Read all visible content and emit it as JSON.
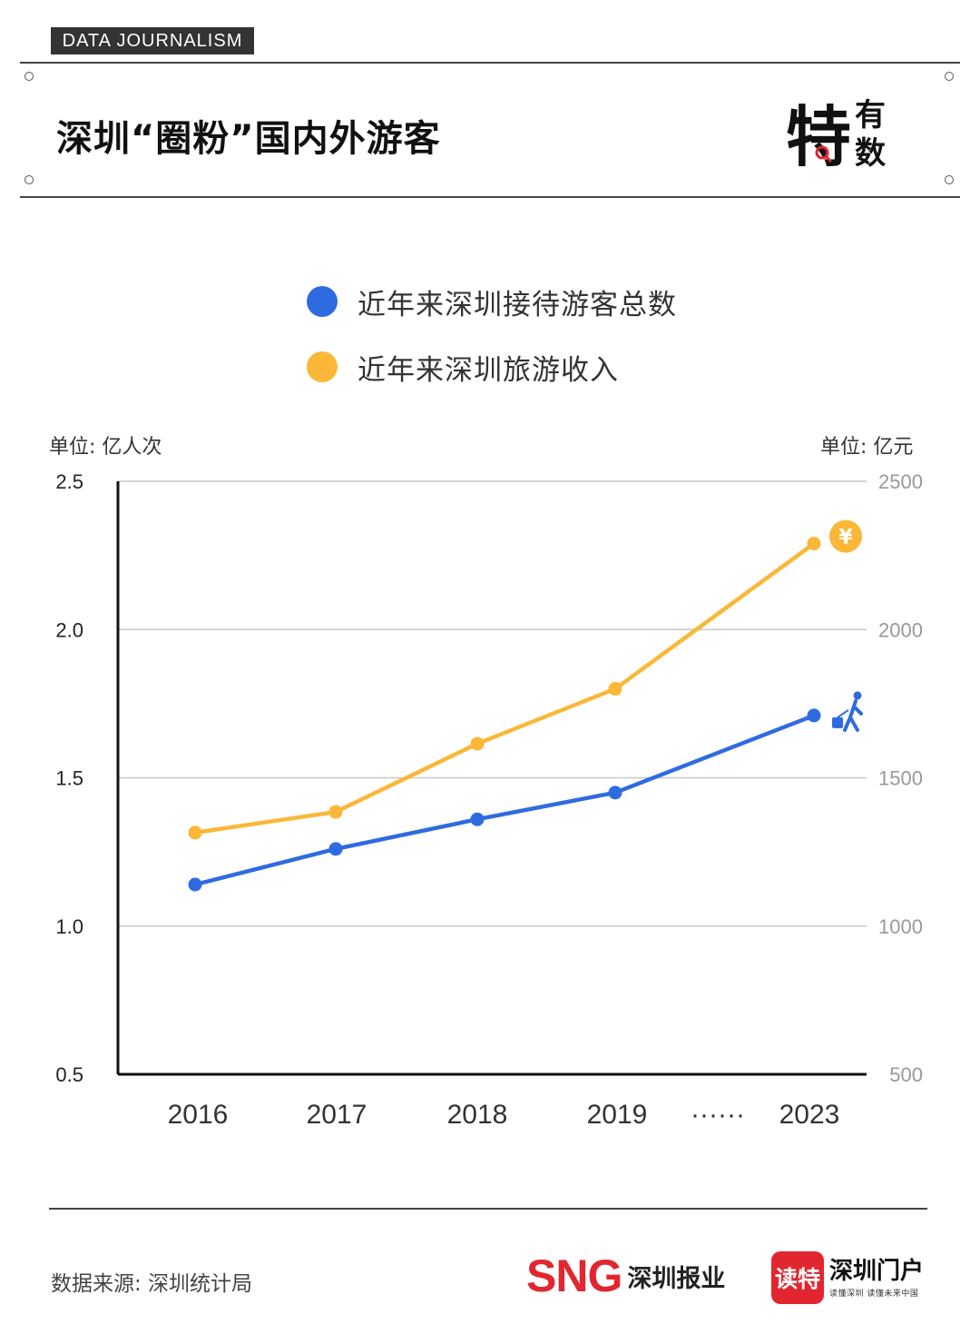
{
  "header": {
    "tag": "DATA JOURNALISM",
    "title": "深圳“圈粉”国内外游客",
    "logo_big": "特",
    "logo_top": "有",
    "logo_bottom": "数"
  },
  "legend": [
    {
      "label": "近年来深圳接待游客总数",
      "color": "#2f6be0"
    },
    {
      "label": "近年来深圳旅游收入",
      "color": "#fbb737"
    }
  ],
  "axes": {
    "left_unit": "单位: 亿人次",
    "right_unit": "单位: 亿元",
    "left_ticks": [
      "0.5",
      "1.0",
      "1.5",
      "2.0",
      "2.5"
    ],
    "right_ticks": [
      "500",
      "1000",
      "1500",
      "2000",
      "2500"
    ],
    "x_labels": [
      "2016",
      "2017",
      "2018",
      "2019",
      "······",
      "2023"
    ]
  },
  "chart_data": {
    "type": "line",
    "x": [
      "2016",
      "2017",
      "2018",
      "2019",
      "2023"
    ],
    "series": [
      {
        "name": "近年来深圳接待游客总数",
        "axis": "left",
        "values": [
          1.14,
          1.26,
          1.36,
          1.45,
          1.71
        ],
        "color": "#2f6be0"
      },
      {
        "name": "近年来深圳旅游收入",
        "axis": "right",
        "values": [
          1315,
          1385,
          1615,
          1800,
          2290
        ],
        "color": "#fbb737"
      }
    ],
    "ylim_left": [
      0.5,
      2.5
    ],
    "ylim_right": [
      500,
      2500
    ],
    "grid": true,
    "icons": {
      "money": "yuan-coin-icon",
      "travel": "traveler-with-luggage-icon"
    },
    "coin_glyph": "¥"
  },
  "footer": {
    "source": "数据来源: 深圳统计局",
    "sng_mark": "SNG",
    "sng_text": "深圳报业",
    "dute_box": "读特",
    "dute_name": "深圳门户",
    "dute_sub": "读懂深圳  读懂未来中国"
  }
}
